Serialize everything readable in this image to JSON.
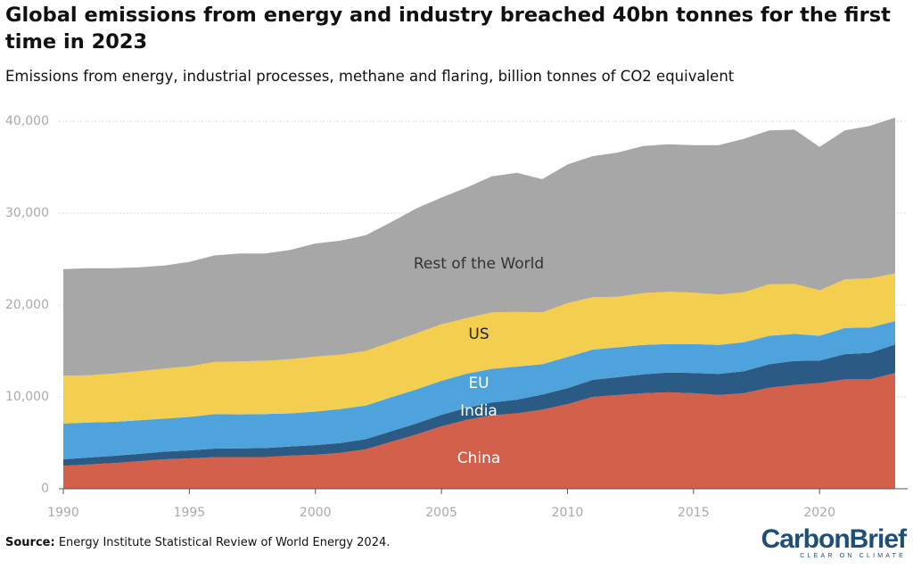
{
  "chart_data": {
    "type": "stacked-area",
    "title": "Global emissions from energy and industry breached 40bn tonnes for the first time in 2023",
    "subtitle": "Emissions from energy, industrial processes, methane and flaring, billion tonnes of CO2 equivalent",
    "x": [
      1990,
      1991,
      1992,
      1993,
      1994,
      1995,
      1996,
      1997,
      1998,
      1999,
      2000,
      2001,
      2002,
      2003,
      2004,
      2005,
      2006,
      2007,
      2008,
      2009,
      2010,
      2011,
      2012,
      2013,
      2014,
      2015,
      2016,
      2017,
      2018,
      2019,
      2020,
      2021,
      2022,
      2023
    ],
    "xlim": [
      1990,
      2023
    ],
    "xticks": [
      1990,
      1995,
      2000,
      2005,
      2010,
      2015,
      2020
    ],
    "ylim": [
      0,
      41000
    ],
    "yticks": [
      0,
      {
        "value": 10000,
        "label": "10,000"
      },
      {
        "value": 20000,
        "label": "20,000"
      },
      {
        "value": 30000,
        "label": "30,000"
      },
      {
        "value": 40000,
        "label": "40,000"
      }
    ],
    "grid": true,
    "series": [
      {
        "name": "China",
        "color": "#d2604a",
        "values": [
          2500,
          2650,
          2800,
          3000,
          3200,
          3300,
          3450,
          3450,
          3450,
          3600,
          3700,
          3900,
          4300,
          5100,
          5900,
          6800,
          7500,
          8000,
          8200,
          8600,
          9200,
          10000,
          10200,
          10400,
          10500,
          10400,
          10200,
          10400,
          11000,
          11300,
          11500,
          11900,
          11900,
          12600
        ]
      },
      {
        "name": "India",
        "color": "#2b5b85",
        "values": [
          700,
          750,
          780,
          800,
          830,
          870,
          920,
          950,
          980,
          1000,
          1050,
          1080,
          1100,
          1150,
          1200,
          1250,
          1320,
          1400,
          1500,
          1650,
          1750,
          1850,
          1950,
          2050,
          2150,
          2200,
          2300,
          2400,
          2550,
          2600,
          2450,
          2750,
          2900,
          3100
        ]
      },
      {
        "name": "EU",
        "color": "#4fa3dc",
        "values": [
          3900,
          3800,
          3700,
          3650,
          3600,
          3650,
          3750,
          3700,
          3700,
          3600,
          3650,
          3700,
          3650,
          3700,
          3700,
          3700,
          3700,
          3650,
          3600,
          3300,
          3400,
          3300,
          3250,
          3200,
          3100,
          3150,
          3150,
          3150,
          3100,
          2950,
          2700,
          2850,
          2750,
          2550
        ]
      },
      {
        "name": "US",
        "color": "#f4cf4f",
        "values": [
          5200,
          5150,
          5250,
          5350,
          5450,
          5500,
          5700,
          5750,
          5800,
          5900,
          6000,
          5900,
          5950,
          6000,
          6100,
          6150,
          6050,
          6150,
          5950,
          5650,
          5850,
          5700,
          5500,
          5650,
          5700,
          5600,
          5500,
          5450,
          5600,
          5450,
          4950,
          5300,
          5350,
          5200
        ]
      },
      {
        "name": "Rest of the World",
        "color": "#a7a7a7",
        "values": [
          11600,
          11650,
          11470,
          11300,
          11220,
          11380,
          11580,
          11750,
          11670,
          11900,
          12300,
          12420,
          12600,
          13050,
          13600,
          13800,
          14230,
          14800,
          15150,
          14500,
          15100,
          15350,
          15700,
          16000,
          16050,
          16050,
          16250,
          16700,
          16750,
          16800,
          15600,
          16200,
          16600,
          16950
        ]
      }
    ]
  },
  "source_label": "Source:",
  "source": "Energy Institute Statistical Review of World Energy 2024.",
  "logo": {
    "name": "CarbonBrief",
    "tagline": "CLEAR ON CLIMATE"
  }
}
